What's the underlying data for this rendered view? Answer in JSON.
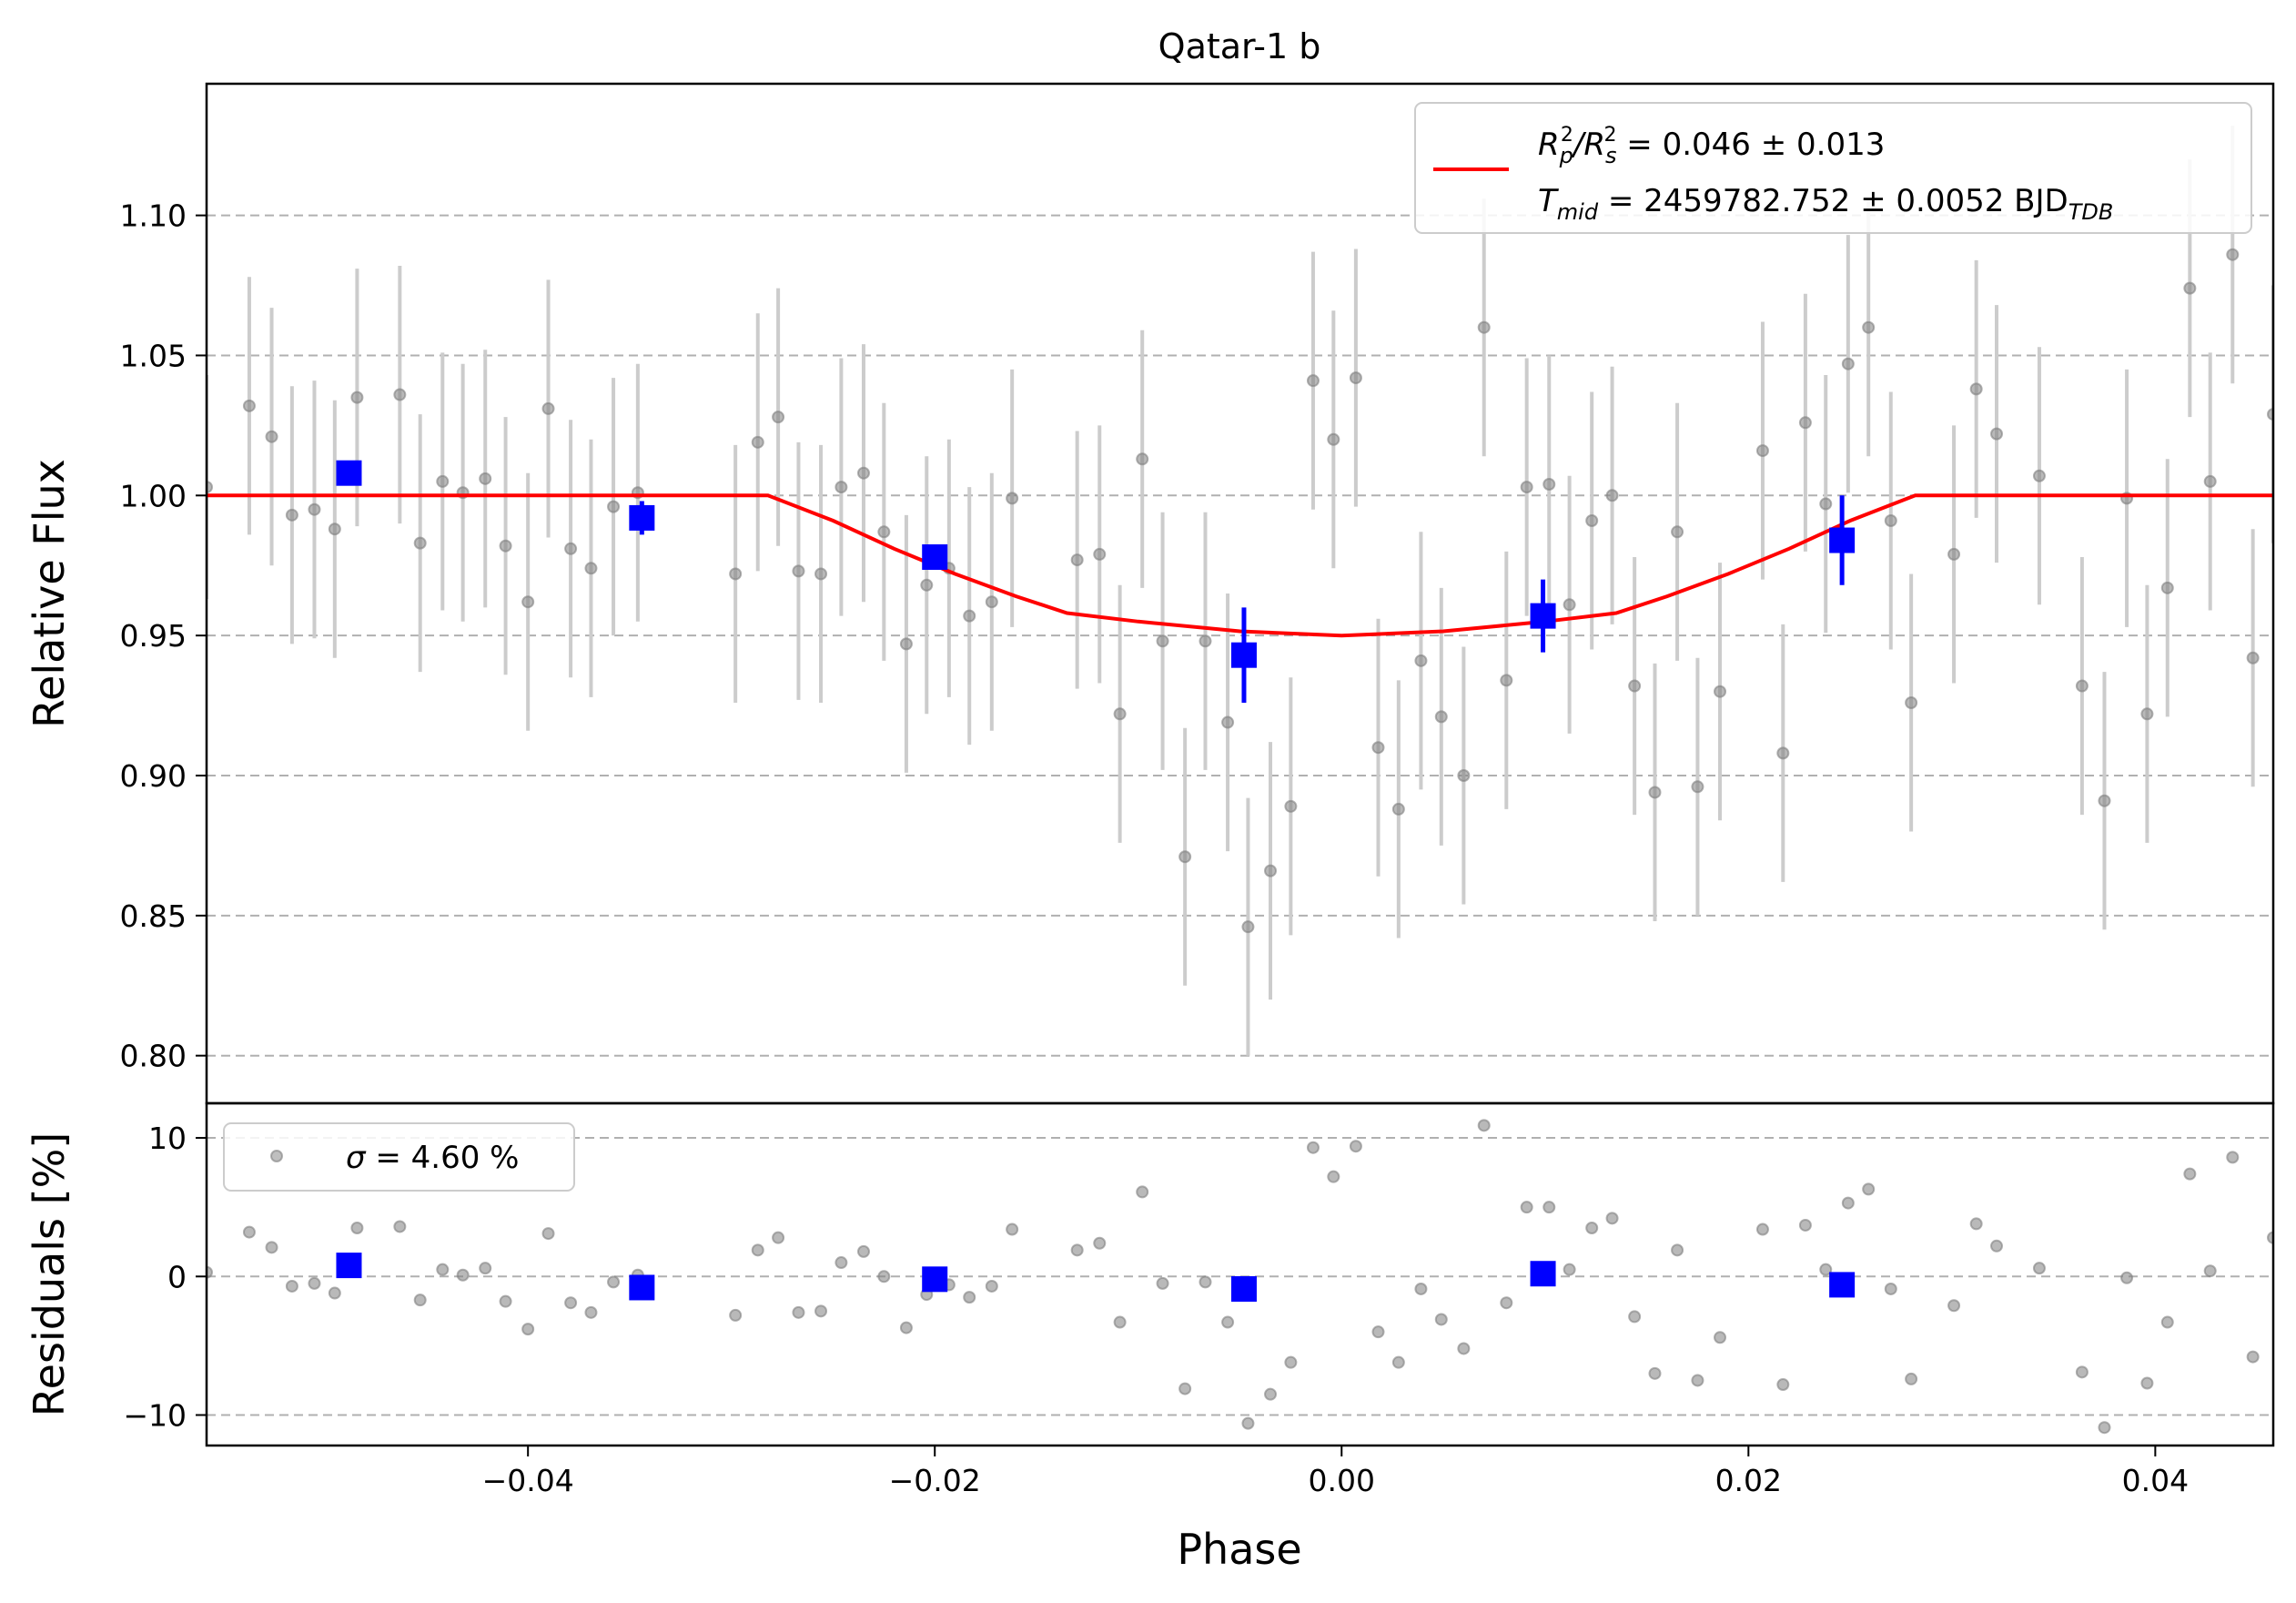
{
  "chart_data": [
    {
      "panel": "top",
      "type": "scatter",
      "title": "Qatar-1 b",
      "xlabel": "",
      "ylabel": "Relative Flux",
      "xlim": [
        -0.0558,
        0.0458
      ],
      "ylim": [
        0.783,
        1.147
      ],
      "yticks": [
        0.8,
        0.85,
        0.9,
        0.95,
        1.0,
        1.05,
        1.1
      ],
      "ytick_labels": [
        "0.80",
        "0.85",
        "0.90",
        "0.95",
        "1.00",
        "1.05",
        "1.10"
      ],
      "grid": "y dashed",
      "legend": {
        "placement": "top-right",
        "line1": {
          "main": "R",
          "sub1": "p",
          "sup1": "2",
          "slash": "/R",
          "sub2": "s",
          "sup2": "2",
          "rest": " = 0.046 ± 0.013"
        },
        "line2": {
          "main": "T",
          "sub1": "mid",
          "rest": " = 2459782.752 ± 0.0052 BJD",
          "sub2": "TDB"
        }
      },
      "colors": {
        "raw": "#808080",
        "raw_err": "#cccccc",
        "binned": "#0000ff",
        "model": "#ff0000"
      },
      "raw_points": [
        [
          -0.0558,
          1.003,
          0.04
        ],
        [
          -0.0537,
          1.032,
          0.046
        ],
        [
          -0.0526,
          1.021,
          0.046
        ],
        [
          -0.0516,
          0.993,
          0.046
        ],
        [
          -0.0505,
          0.995,
          0.046
        ],
        [
          -0.0495,
          0.988,
          0.046
        ],
        [
          -0.0484,
          1.035,
          0.046
        ],
        [
          -0.0463,
          1.036,
          0.046
        ],
        [
          -0.0453,
          0.983,
          0.046
        ],
        [
          -0.0442,
          1.005,
          0.046
        ],
        [
          -0.0432,
          1.001,
          0.046
        ],
        [
          -0.0421,
          1.006,
          0.046
        ],
        [
          -0.0411,
          0.982,
          0.046
        ],
        [
          -0.04,
          0.962,
          0.046
        ],
        [
          -0.039,
          1.031,
          0.046
        ],
        [
          -0.0379,
          0.981,
          0.046
        ],
        [
          -0.0369,
          0.974,
          0.046
        ],
        [
          -0.0358,
          0.996,
          0.046
        ],
        [
          -0.0346,
          1.001,
          0.046
        ],
        [
          -0.0298,
          0.972,
          0.046
        ],
        [
          -0.0287,
          1.019,
          0.046
        ],
        [
          -0.0277,
          1.028,
          0.046
        ],
        [
          -0.0267,
          0.973,
          0.046
        ],
        [
          -0.0256,
          0.972,
          0.046
        ],
        [
          -0.0246,
          1.003,
          0.046
        ],
        [
          -0.0235,
          1.008,
          0.046
        ],
        [
          -0.0225,
          0.987,
          0.046
        ],
        [
          -0.0214,
          0.947,
          0.046
        ],
        [
          -0.0204,
          0.968,
          0.046
        ],
        [
          -0.0193,
          0.974,
          0.046
        ],
        [
          -0.0183,
          0.957,
          0.046
        ],
        [
          -0.0172,
          0.962,
          0.046
        ],
        [
          -0.0162,
          0.999,
          0.046
        ],
        [
          -0.013,
          0.977,
          0.046
        ],
        [
          -0.0119,
          0.979,
          0.046
        ],
        [
          -0.0109,
          0.922,
          0.046
        ],
        [
          -0.0098,
          1.013,
          0.046
        ],
        [
          -0.0088,
          0.948,
          0.046
        ],
        [
          -0.0077,
          0.871,
          0.046
        ],
        [
          -0.0067,
          0.948,
          0.046
        ],
        [
          -0.0056,
          0.919,
          0.046
        ],
        [
          -0.0046,
          0.846,
          0.046
        ],
        [
          -0.0035,
          0.866,
          0.046
        ],
        [
          -0.0025,
          0.889,
          0.046
        ],
        [
          -0.0014,
          1.041,
          0.046
        ],
        [
          -0.0004,
          1.02,
          0.046
        ],
        [
          0.0007,
          1.042,
          0.046
        ],
        [
          0.0018,
          0.91,
          0.046
        ],
        [
          0.0028,
          0.888,
          0.046
        ],
        [
          0.0039,
          0.941,
          0.046
        ],
        [
          0.0049,
          0.921,
          0.046
        ],
        [
          0.006,
          0.9,
          0.046
        ],
        [
          0.007,
          1.06,
          0.046
        ],
        [
          0.0081,
          0.934,
          0.046
        ],
        [
          0.0091,
          1.003,
          0.046
        ],
        [
          0.0102,
          1.004,
          0.046
        ],
        [
          0.0112,
          0.961,
          0.046
        ],
        [
          0.0123,
          0.991,
          0.046
        ],
        [
          0.0133,
          1.0,
          0.046
        ],
        [
          0.0144,
          0.932,
          0.046
        ],
        [
          0.0154,
          0.894,
          0.046
        ],
        [
          0.0165,
          0.987,
          0.046
        ],
        [
          0.0175,
          0.896,
          0.046
        ],
        [
          0.0186,
          0.93,
          0.046
        ],
        [
          0.0207,
          1.016,
          0.046
        ],
        [
          0.0217,
          0.908,
          0.046
        ],
        [
          0.0228,
          1.026,
          0.046
        ],
        [
          0.0238,
          0.997,
          0.046
        ],
        [
          0.0249,
          1.047,
          0.046
        ],
        [
          0.0259,
          1.06,
          0.046
        ],
        [
          0.027,
          0.991,
          0.046
        ],
        [
          0.028,
          0.926,
          0.046
        ],
        [
          0.0301,
          0.979,
          0.046
        ],
        [
          0.0312,
          1.038,
          0.046
        ],
        [
          0.0322,
          1.022,
          0.046
        ],
        [
          0.0343,
          1.007,
          0.046
        ],
        [
          0.0364,
          0.932,
          0.046
        ],
        [
          0.0375,
          0.891,
          0.046
        ],
        [
          0.0386,
          0.999,
          0.046
        ],
        [
          0.0396,
          0.922,
          0.046
        ],
        [
          0.0406,
          0.967,
          0.046
        ],
        [
          0.0417,
          1.074,
          0.046
        ],
        [
          0.0427,
          1.005,
          0.046
        ],
        [
          0.0438,
          1.086,
          0.046
        ],
        [
          0.0448,
          0.942,
          0.046
        ],
        [
          0.0458,
          1.029,
          0.046
        ]
      ],
      "binned_points": [
        [
          -0.0488,
          1.008,
          0.004
        ],
        [
          -0.0344,
          0.992,
          0.006
        ],
        [
          -0.02,
          0.978,
          0.004
        ],
        [
          -0.0048,
          0.943,
          0.017
        ],
        [
          0.0099,
          0.957,
          0.013
        ],
        [
          0.0246,
          0.984,
          0.016
        ]
      ],
      "model_points": [
        [
          -0.0558,
          1.0
        ],
        [
          -0.0282,
          1.0
        ],
        [
          -0.025,
          0.991
        ],
        [
          -0.022,
          0.981
        ],
        [
          -0.019,
          0.972
        ],
        [
          -0.016,
          0.964
        ],
        [
          -0.0135,
          0.958
        ],
        [
          -0.01,
          0.955
        ],
        [
          -0.005,
          0.9515
        ],
        [
          0.0,
          0.95
        ],
        [
          0.005,
          0.9515
        ],
        [
          0.01,
          0.955
        ],
        [
          0.0135,
          0.958
        ],
        [
          0.016,
          0.964
        ],
        [
          0.019,
          0.972
        ],
        [
          0.022,
          0.981
        ],
        [
          0.025,
          0.991
        ],
        [
          0.0282,
          1.0
        ],
        [
          0.0458,
          1.0
        ]
      ]
    },
    {
      "panel": "bottom",
      "type": "scatter",
      "title": "",
      "xlabel": "Phase",
      "ylabel": "Residuals [%]",
      "xlim": [
        -0.0558,
        0.0458
      ],
      "ylim": [
        -12.2,
        12.5
      ],
      "xticks": [
        -0.04,
        -0.02,
        0.0,
        0.02,
        0.04
      ],
      "xtick_labels": [
        "−0.04",
        "−0.02",
        "0.00",
        "0.02",
        "0.04"
      ],
      "yticks": [
        -10,
        0,
        10
      ],
      "ytick_labels": [
        "−10",
        "0",
        "10"
      ],
      "grid": "y dashed",
      "legend": {
        "placement": "top-left",
        "sigma_symbol": "σ",
        "text": " = 4.60 %"
      },
      "raw_points": [
        [
          -0.0558,
          0.3
        ],
        [
          -0.0537,
          3.2
        ],
        [
          -0.0526,
          2.1
        ],
        [
          -0.0516,
          -0.7
        ],
        [
          -0.0505,
          -0.5
        ],
        [
          -0.0495,
          -1.2
        ],
        [
          -0.0484,
          3.5
        ],
        [
          -0.0463,
          3.6
        ],
        [
          -0.0453,
          -1.7
        ],
        [
          -0.0442,
          0.5
        ],
        [
          -0.0432,
          0.1
        ],
        [
          -0.0421,
          0.6
        ],
        [
          -0.0411,
          -1.8
        ],
        [
          -0.04,
          -3.8
        ],
        [
          -0.039,
          3.1
        ],
        [
          -0.0379,
          -1.9
        ],
        [
          -0.0369,
          -2.6
        ],
        [
          -0.0358,
          -0.4
        ],
        [
          -0.0346,
          0.1
        ],
        [
          -0.0298,
          -2.8
        ],
        [
          -0.0287,
          1.9
        ],
        [
          -0.0277,
          2.8
        ],
        [
          -0.0267,
          -2.6
        ],
        [
          -0.0256,
          -2.5
        ],
        [
          -0.0246,
          1.0
        ],
        [
          -0.0235,
          1.8
        ],
        [
          -0.0225,
          0.0
        ],
        [
          -0.0214,
          -3.7
        ],
        [
          -0.0204,
          -1.3
        ],
        [
          -0.0193,
          -0.6
        ],
        [
          -0.0183,
          -1.5
        ],
        [
          -0.0172,
          -0.7
        ],
        [
          -0.0162,
          3.4
        ],
        [
          -0.013,
          1.9
        ],
        [
          -0.0119,
          2.4
        ],
        [
          -0.0109,
          -3.3
        ],
        [
          -0.0098,
          6.1
        ],
        [
          -0.0088,
          -0.5
        ],
        [
          -0.0077,
          -8.1
        ],
        [
          -0.0067,
          -0.4
        ],
        [
          -0.0056,
          -3.3
        ],
        [
          -0.0046,
          -10.6
        ],
        [
          -0.0035,
          -8.5
        ],
        [
          -0.0025,
          -6.2
        ],
        [
          -0.0014,
          9.3
        ],
        [
          -0.0004,
          7.2
        ],
        [
          0.0007,
          9.4
        ],
        [
          0.0018,
          -4.0
        ],
        [
          0.0028,
          -6.2
        ],
        [
          0.0039,
          -0.9
        ],
        [
          0.0049,
          -3.1
        ],
        [
          0.006,
          -5.2
        ],
        [
          0.007,
          10.9
        ],
        [
          0.0081,
          -1.9
        ],
        [
          0.0091,
          5.0
        ],
        [
          0.0102,
          5.0
        ],
        [
          0.0112,
          0.5
        ],
        [
          0.0123,
          3.5
        ],
        [
          0.0133,
          4.2
        ],
        [
          0.0144,
          -2.9
        ],
        [
          0.0154,
          -7.0
        ],
        [
          0.0165,
          1.9
        ],
        [
          0.0175,
          -7.5
        ],
        [
          0.0186,
          -4.4
        ],
        [
          0.0207,
          3.4
        ],
        [
          0.0217,
          -7.8
        ],
        [
          0.0228,
          3.7
        ],
        [
          0.0238,
          0.5
        ],
        [
          0.0249,
          5.3
        ],
        [
          0.0259,
          6.3
        ],
        [
          0.027,
          -0.9
        ],
        [
          0.028,
          -7.4
        ],
        [
          0.0301,
          -2.1
        ],
        [
          0.0312,
          3.8
        ],
        [
          0.0322,
          2.2
        ],
        [
          0.0343,
          0.6
        ],
        [
          0.0364,
          -6.9
        ],
        [
          0.0375,
          -10.9
        ],
        [
          0.0386,
          -0.1
        ],
        [
          0.0396,
          -7.7
        ],
        [
          0.0406,
          -3.3
        ],
        [
          0.0417,
          7.4
        ],
        [
          0.0427,
          0.4
        ],
        [
          0.0438,
          8.6
        ],
        [
          0.0448,
          -5.8
        ],
        [
          0.0458,
          2.8
        ]
      ],
      "binned_points": [
        [
          -0.0488,
          0.8
        ],
        [
          -0.0344,
          -0.8
        ],
        [
          -0.02,
          -0.2
        ],
        [
          -0.0048,
          -0.9
        ],
        [
          0.0099,
          0.2
        ],
        [
          0.0246,
          -0.6
        ]
      ]
    }
  ]
}
